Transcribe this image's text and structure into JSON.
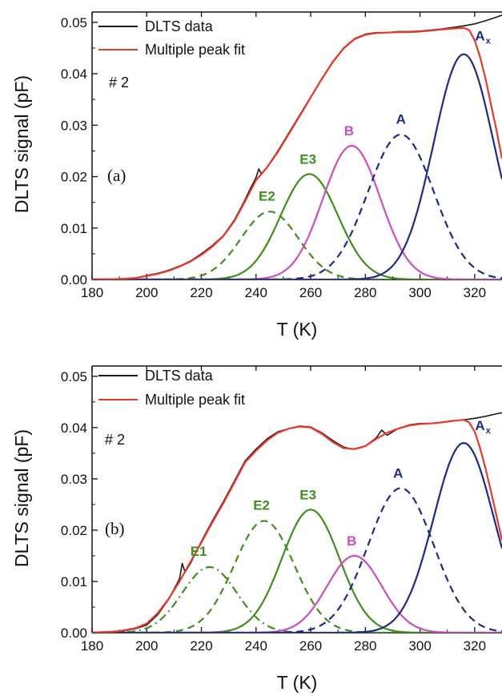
{
  "colors": {
    "data": "#1a1a1a",
    "fit": "#e8392a",
    "E1": "#3f8f1f",
    "E2": "#3f8f1f",
    "E3": "#3f8f1f",
    "B": "#cc4fbf",
    "A": "#1d2a8a",
    "Ax": "#1d2a8a"
  },
  "chart_data": [
    {
      "type": "line",
      "panel_label": "(a)",
      "sample_label": "# 2",
      "xlabel": "T (K)",
      "ylabel": "DLTS signal (pF)",
      "xlim": [
        180,
        330
      ],
      "ylim": [
        0,
        0.052
      ],
      "xticks": [
        180,
        200,
        220,
        240,
        260,
        280,
        300,
        320
      ],
      "yticks": [
        "0.00",
        "0.01",
        "0.02",
        "0.03",
        "0.04",
        "0.05"
      ],
      "grid": false,
      "legend": {
        "placement": "top-left",
        "entries": [
          {
            "label": "DLTS data",
            "key": "data"
          },
          {
            "label": "Multiple peak fit",
            "key": "fit"
          }
        ]
      },
      "peaks": [
        {
          "name": "E2",
          "label": "E2",
          "center": 245,
          "amplitude": 0.0132,
          "width": 10.5,
          "style": "dashed",
          "color_key": "E2",
          "label_at": [
            244,
            0.0153
          ]
        },
        {
          "name": "E3",
          "label": "E3",
          "center": 259.5,
          "amplitude": 0.0205,
          "width": 10.5,
          "style": "solid",
          "color_key": "E3",
          "label_at": [
            259,
            0.0225
          ]
        },
        {
          "name": "B",
          "label": "B",
          "center": 275,
          "amplitude": 0.026,
          "width": 10.5,
          "style": "solid",
          "color_key": "B",
          "label_at": [
            274,
            0.028
          ]
        },
        {
          "name": "A",
          "label": "A",
          "center": 293,
          "amplitude": 0.0282,
          "width": 12,
          "style": "dashed",
          "color_key": "A",
          "label_at": [
            293,
            0.0303
          ]
        },
        {
          "name": "Ax",
          "label": "A",
          "label_sub": "x",
          "center": 316,
          "amplitude": 0.0438,
          "width": 11,
          "style": "solid",
          "color_key": "Ax",
          "label_at": [
            323,
            0.0465
          ]
        }
      ],
      "series": [
        {
          "name": "DLTS data",
          "x": [
            180,
            190,
            196,
            200,
            204,
            208,
            212,
            216,
            220,
            224,
            228,
            232,
            236,
            238,
            240,
            241,
            242,
            244,
            248,
            252,
            256,
            260,
            264,
            268,
            272,
            276,
            280,
            284,
            288,
            292,
            296,
            300,
            304,
            308,
            312,
            316,
            320,
            324,
            328,
            330
          ],
          "y": [
            0.0,
            0.0001,
            0.0003,
            0.0008,
            0.0012,
            0.0018,
            0.0026,
            0.0036,
            0.005,
            0.0066,
            0.0085,
            0.0115,
            0.0155,
            0.0178,
            0.0198,
            0.0215,
            0.0205,
            0.0218,
            0.025,
            0.0285,
            0.032,
            0.0355,
            0.039,
            0.0423,
            0.045,
            0.0468,
            0.0477,
            0.048,
            0.048,
            0.0482,
            0.0482,
            0.0483,
            0.0485,
            0.0487,
            0.049,
            0.0493,
            0.0497,
            0.0503,
            0.051,
            0.0514
          ]
        },
        {
          "name": "Multiple peak fit",
          "x": [
            180,
            190,
            196,
            200,
            204,
            208,
            212,
            216,
            220,
            224,
            228,
            232,
            236,
            240,
            244,
            248,
            252,
            256,
            260,
            264,
            268,
            272,
            276,
            280,
            284,
            288,
            292,
            296,
            300,
            304,
            308,
            312,
            316,
            318,
            320,
            322,
            324,
            326,
            328,
            330
          ],
          "y": [
            0.0,
            0.0001,
            0.0003,
            0.0007,
            0.0011,
            0.0017,
            0.0025,
            0.0035,
            0.0048,
            0.0064,
            0.0084,
            0.0113,
            0.0152,
            0.0193,
            0.0218,
            0.0248,
            0.0283,
            0.0318,
            0.0354,
            0.0389,
            0.0422,
            0.0449,
            0.0467,
            0.0476,
            0.0479,
            0.048,
            0.0481,
            0.0481,
            0.0482,
            0.0484,
            0.0486,
            0.0488,
            0.0489,
            0.0485,
            0.0465,
            0.0432,
            0.039,
            0.034,
            0.029,
            0.0235
          ]
        }
      ]
    },
    {
      "type": "line",
      "panel_label": "(b)",
      "sample_label": "# 2",
      "xlabel": "T (K)",
      "ylabel": "DLTS signal (pF)",
      "xlim": [
        180,
        330
      ],
      "ylim": [
        0,
        0.052
      ],
      "xticks": [
        180,
        200,
        220,
        240,
        260,
        280,
        300,
        320
      ],
      "yticks": [
        "0.00",
        "0.01",
        "0.02",
        "0.03",
        "0.04",
        "0.05"
      ],
      "grid": false,
      "legend": {
        "placement": "top-left",
        "entries": [
          {
            "label": "DLTS data",
            "key": "data"
          },
          {
            "label": "Multiple peak fit",
            "key": "fit"
          }
        ]
      },
      "peaks": [
        {
          "name": "E1",
          "label": "E1",
          "center": 223,
          "amplitude": 0.0128,
          "width": 10,
          "style": "dashdot",
          "color_key": "E1",
          "label_at": [
            219,
            0.015
          ]
        },
        {
          "name": "E2",
          "label": "E2",
          "center": 243,
          "amplitude": 0.0218,
          "width": 11,
          "style": "dashed",
          "color_key": "E2",
          "label_at": [
            242,
            0.024
          ]
        },
        {
          "name": "E3",
          "label": "E3",
          "center": 260,
          "amplitude": 0.024,
          "width": 10.5,
          "style": "solid",
          "color_key": "E3",
          "label_at": [
            259,
            0.026
          ]
        },
        {
          "name": "B",
          "label": "B",
          "center": 276,
          "amplitude": 0.015,
          "width": 10,
          "style": "solid",
          "color_key": "B",
          "label_at": [
            275,
            0.017
          ]
        },
        {
          "name": "A",
          "label": "A",
          "center": 293,
          "amplitude": 0.0282,
          "width": 12,
          "style": "dashed",
          "color_key": "A",
          "label_at": [
            292,
            0.0302
          ]
        },
        {
          "name": "Ax",
          "label": "A",
          "label_sub": "x",
          "center": 316,
          "amplitude": 0.037,
          "width": 11,
          "style": "solid",
          "color_key": "Ax",
          "label_at": [
            323,
            0.0395
          ]
        }
      ],
      "series": [
        {
          "name": "DLTS data",
          "x": [
            180,
            190,
            196,
            200,
            204,
            208,
            212,
            213,
            214,
            216,
            220,
            224,
            228,
            232,
            236,
            240,
            244,
            248,
            252,
            256,
            260,
            264,
            268,
            272,
            275,
            278,
            280,
            284,
            286,
            288,
            292,
            296,
            300,
            304,
            308,
            312,
            316,
            320,
            324,
            328,
            330
          ],
          "y": [
            0.0,
            0.0002,
            0.0008,
            0.0015,
            0.0035,
            0.0065,
            0.0105,
            0.0135,
            0.0118,
            0.0135,
            0.0178,
            0.0218,
            0.0255,
            0.0295,
            0.0335,
            0.0358,
            0.0378,
            0.0392,
            0.0398,
            0.0403,
            0.0401,
            0.039,
            0.0375,
            0.0362,
            0.0358,
            0.036,
            0.0364,
            0.038,
            0.0395,
            0.0385,
            0.0398,
            0.0405,
            0.0408,
            0.0408,
            0.041,
            0.0413,
            0.0415,
            0.0418,
            0.0422,
            0.0427,
            0.0429
          ]
        },
        {
          "name": "Multiple peak fit",
          "x": [
            180,
            190,
            196,
            200,
            204,
            208,
            212,
            216,
            220,
            224,
            228,
            232,
            236,
            240,
            244,
            248,
            252,
            256,
            260,
            264,
            268,
            272,
            276,
            280,
            284,
            288,
            292,
            296,
            300,
            304,
            308,
            312,
            316,
            318,
            320,
            322,
            324,
            326,
            328,
            330
          ],
          "y": [
            0.0,
            0.0003,
            0.0009,
            0.0018,
            0.0038,
            0.0066,
            0.01,
            0.0138,
            0.0176,
            0.0215,
            0.0252,
            0.0292,
            0.0332,
            0.0355,
            0.0375,
            0.039,
            0.0398,
            0.0402,
            0.04,
            0.0388,
            0.0372,
            0.036,
            0.0358,
            0.0364,
            0.0378,
            0.039,
            0.0398,
            0.0404,
            0.0407,
            0.0408,
            0.041,
            0.0413,
            0.0415,
            0.041,
            0.0392,
            0.036,
            0.032,
            0.0275,
            0.0228,
            0.018
          ]
        }
      ]
    }
  ]
}
